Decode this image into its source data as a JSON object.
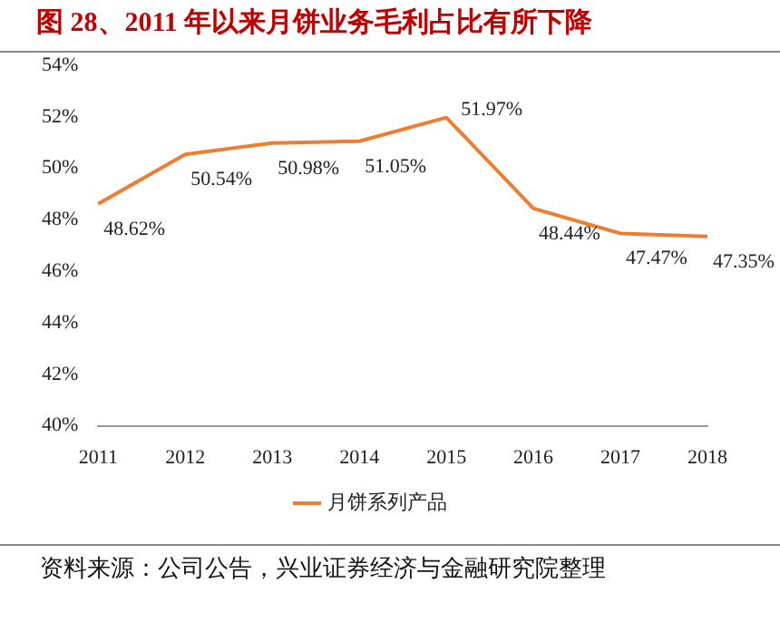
{
  "chart_data": {
    "type": "line",
    "title": "图 28、2011 年以来月饼业务毛利占比有所下降",
    "categories": [
      "2011",
      "2012",
      "2013",
      "2014",
      "2015",
      "2016",
      "2017",
      "2018"
    ],
    "series": [
      {
        "name": "月饼系列产品",
        "color": "#ed7d31",
        "values": [
          48.62,
          50.54,
          50.98,
          51.05,
          51.97,
          48.44,
          47.47,
          47.35
        ],
        "value_labels": [
          "48.62%",
          "50.54%",
          "50.98%",
          "51.05%",
          "51.97%",
          "48.44%",
          "47.47%",
          "47.35%"
        ]
      }
    ],
    "ylim": [
      40,
      54
    ],
    "yticks": [
      {
        "value": 40,
        "label": "40%"
      },
      {
        "value": 42,
        "label": "42%"
      },
      {
        "value": 44,
        "label": "44%"
      },
      {
        "value": 46,
        "label": "46%"
      },
      {
        "value": 48,
        "label": "48%"
      },
      {
        "value": 50,
        "label": "50%"
      },
      {
        "value": 52,
        "label": "52%"
      },
      {
        "value": 54,
        "label": "54%"
      }
    ],
    "grid": false,
    "legend": "bottom",
    "marker": "none",
    "annotations": [
      "资料来源：公司公告，兴业证券经济与金融研究院整理"
    ]
  }
}
